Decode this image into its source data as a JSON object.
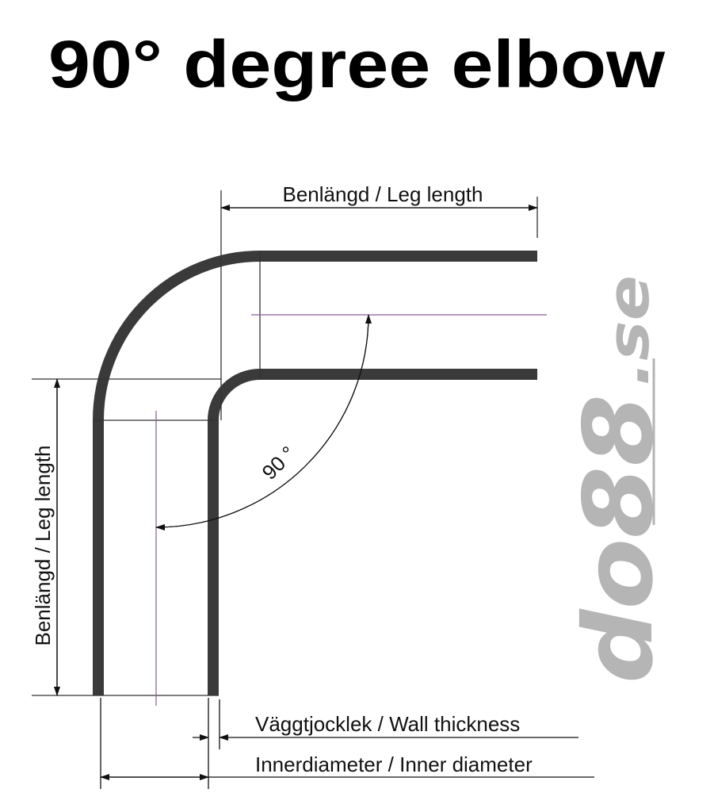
{
  "title": "90° degree elbow",
  "labels": {
    "leg_length_top": "Benlängd / Leg length",
    "leg_length_left": "Benlängd / Leg length",
    "angle": "90 °",
    "wall_thickness": "Väggtjocklek / Wall thickness",
    "inner_diameter": "Innerdiameter / Inner diameter"
  },
  "logo": {
    "main": "do88",
    "suffix": ".se"
  },
  "colors": {
    "pipe": "#3a3a3a",
    "centerline": "#8a5a9a",
    "logo": "#b5b5b5"
  }
}
